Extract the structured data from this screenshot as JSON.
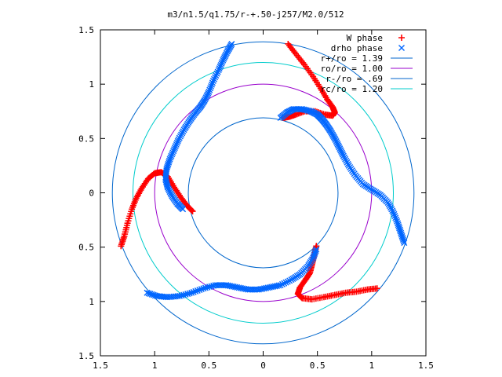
{
  "chart_data": {
    "type": "scatter",
    "title": "m3/n1.5/q1.75/r-+.50-j257/M2.0/512",
    "xlim": [
      -1.5,
      1.5
    ],
    "ylim": [
      -1.5,
      1.5
    ],
    "x_tick_labels": [
      "1.5",
      "1",
      "0.5",
      "0",
      "0.5",
      "1",
      "1.5"
    ],
    "y_tick_labels": [
      "1.5",
      "1",
      "0.5",
      "0",
      "0.5",
      "1",
      "1.5"
    ],
    "x_ticks": [
      -1.5,
      -1,
      -0.5,
      0,
      0.5,
      1,
      1.5
    ],
    "y_ticks": [
      1.5,
      1,
      0.5,
      0,
      -0.5,
      -1,
      -1.5
    ],
    "grid": false,
    "legend_position": "top-right",
    "series": [
      {
        "name": "W phase",
        "marker": "+",
        "color": "#ff0000",
        "points": [
          [
            0.23,
            1.37
          ],
          [
            0.3,
            1.28
          ],
          [
            0.38,
            1.18
          ],
          [
            0.46,
            1.07
          ],
          [
            0.53,
            0.96
          ],
          [
            0.59,
            0.86
          ],
          [
            0.64,
            0.79
          ],
          [
            0.66,
            0.74
          ],
          [
            0.64,
            0.71
          ],
          [
            0.57,
            0.72
          ],
          [
            0.48,
            0.75
          ],
          [
            0.38,
            0.75
          ],
          [
            0.3,
            0.72
          ],
          [
            0.24,
            0.7
          ],
          [
            0.18,
            0.69
          ],
          [
            -0.65,
            -0.17
          ],
          [
            -0.7,
            -0.12
          ],
          [
            -0.76,
            -0.04
          ],
          [
            -0.82,
            0.05
          ],
          [
            -0.88,
            0.15
          ],
          [
            -0.94,
            0.19
          ],
          [
            -1.0,
            0.18
          ],
          [
            -1.06,
            0.13
          ],
          [
            -1.12,
            0.04
          ],
          [
            -1.17,
            -0.05
          ],
          [
            -1.21,
            -0.15
          ],
          [
            -1.25,
            -0.28
          ],
          [
            -1.28,
            -0.4
          ],
          [
            -1.31,
            -0.49
          ],
          [
            0.49,
            -0.49
          ],
          [
            0.47,
            -0.58
          ],
          [
            0.45,
            -0.66
          ],
          [
            0.43,
            -0.74
          ],
          [
            0.39,
            -0.8
          ],
          [
            0.34,
            -0.87
          ],
          [
            0.32,
            -0.93
          ],
          [
            0.36,
            -0.97
          ],
          [
            0.45,
            -0.98
          ],
          [
            0.56,
            -0.96
          ],
          [
            0.66,
            -0.94
          ],
          [
            0.76,
            -0.92
          ],
          [
            0.86,
            -0.91
          ],
          [
            0.96,
            -0.89
          ],
          [
            1.05,
            -0.88
          ]
        ]
      },
      {
        "name": "drho phase",
        "marker": "x",
        "color": "#0066ff",
        "points": [
          [
            -0.29,
            1.37
          ],
          [
            -0.33,
            1.3
          ],
          [
            -0.37,
            1.22
          ],
          [
            -0.41,
            1.13
          ],
          [
            -0.46,
            1.03
          ],
          [
            -0.5,
            0.93
          ],
          [
            -0.54,
            0.85
          ],
          [
            -0.58,
            0.79
          ],
          [
            -0.63,
            0.73
          ],
          [
            -0.68,
            0.66
          ],
          [
            -0.73,
            0.58
          ],
          [
            -0.78,
            0.49
          ],
          [
            -0.82,
            0.4
          ],
          [
            -0.86,
            0.31
          ],
          [
            -0.89,
            0.22
          ],
          [
            -0.9,
            0.13
          ],
          [
            -0.88,
            0.05
          ],
          [
            -0.84,
            -0.03
          ],
          [
            -0.79,
            -0.1
          ],
          [
            -0.74,
            -0.15
          ],
          [
            0.16,
            0.69
          ],
          [
            0.22,
            0.74
          ],
          [
            0.28,
            0.77
          ],
          [
            0.36,
            0.77
          ],
          [
            0.44,
            0.75
          ],
          [
            0.5,
            0.72
          ],
          [
            0.54,
            0.68
          ],
          [
            0.58,
            0.63
          ],
          [
            0.62,
            0.57
          ],
          [
            0.66,
            0.5
          ],
          [
            0.7,
            0.42
          ],
          [
            0.74,
            0.34
          ],
          [
            0.79,
            0.25
          ],
          [
            0.85,
            0.16
          ],
          [
            0.92,
            0.08
          ],
          [
            1.0,
            0.03
          ],
          [
            1.08,
            -0.02
          ],
          [
            1.15,
            -0.09
          ],
          [
            1.2,
            -0.18
          ],
          [
            1.24,
            -0.28
          ],
          [
            1.27,
            -0.37
          ],
          [
            1.3,
            -0.46
          ],
          [
            -1.07,
            -0.92
          ],
          [
            -0.98,
            -0.95
          ],
          [
            -0.88,
            -0.96
          ],
          [
            -0.77,
            -0.95
          ],
          [
            -0.66,
            -0.92
          ],
          [
            -0.55,
            -0.88
          ],
          [
            -0.44,
            -0.85
          ],
          [
            -0.34,
            -0.85
          ],
          [
            -0.24,
            -0.87
          ],
          [
            -0.14,
            -0.89
          ],
          [
            -0.04,
            -0.89
          ],
          [
            0.06,
            -0.87
          ],
          [
            0.16,
            -0.85
          ],
          [
            0.26,
            -0.8
          ],
          [
            0.34,
            -0.75
          ],
          [
            0.41,
            -0.68
          ],
          [
            0.46,
            -0.6
          ],
          [
            0.49,
            -0.52
          ]
        ]
      }
    ],
    "circles": [
      {
        "name": "r+/ro = 1.39",
        "radius": 1.39,
        "color": "#0066cc"
      },
      {
        "name": "ro/ro = 1.00",
        "radius": 1.0,
        "color": "#9900cc"
      },
      {
        "name": "r-/ro = .69",
        "radius": 0.69,
        "color": "#0066cc"
      },
      {
        "name": "rc/ro = 1.20",
        "radius": 1.2,
        "color": "#00cccc"
      }
    ]
  }
}
